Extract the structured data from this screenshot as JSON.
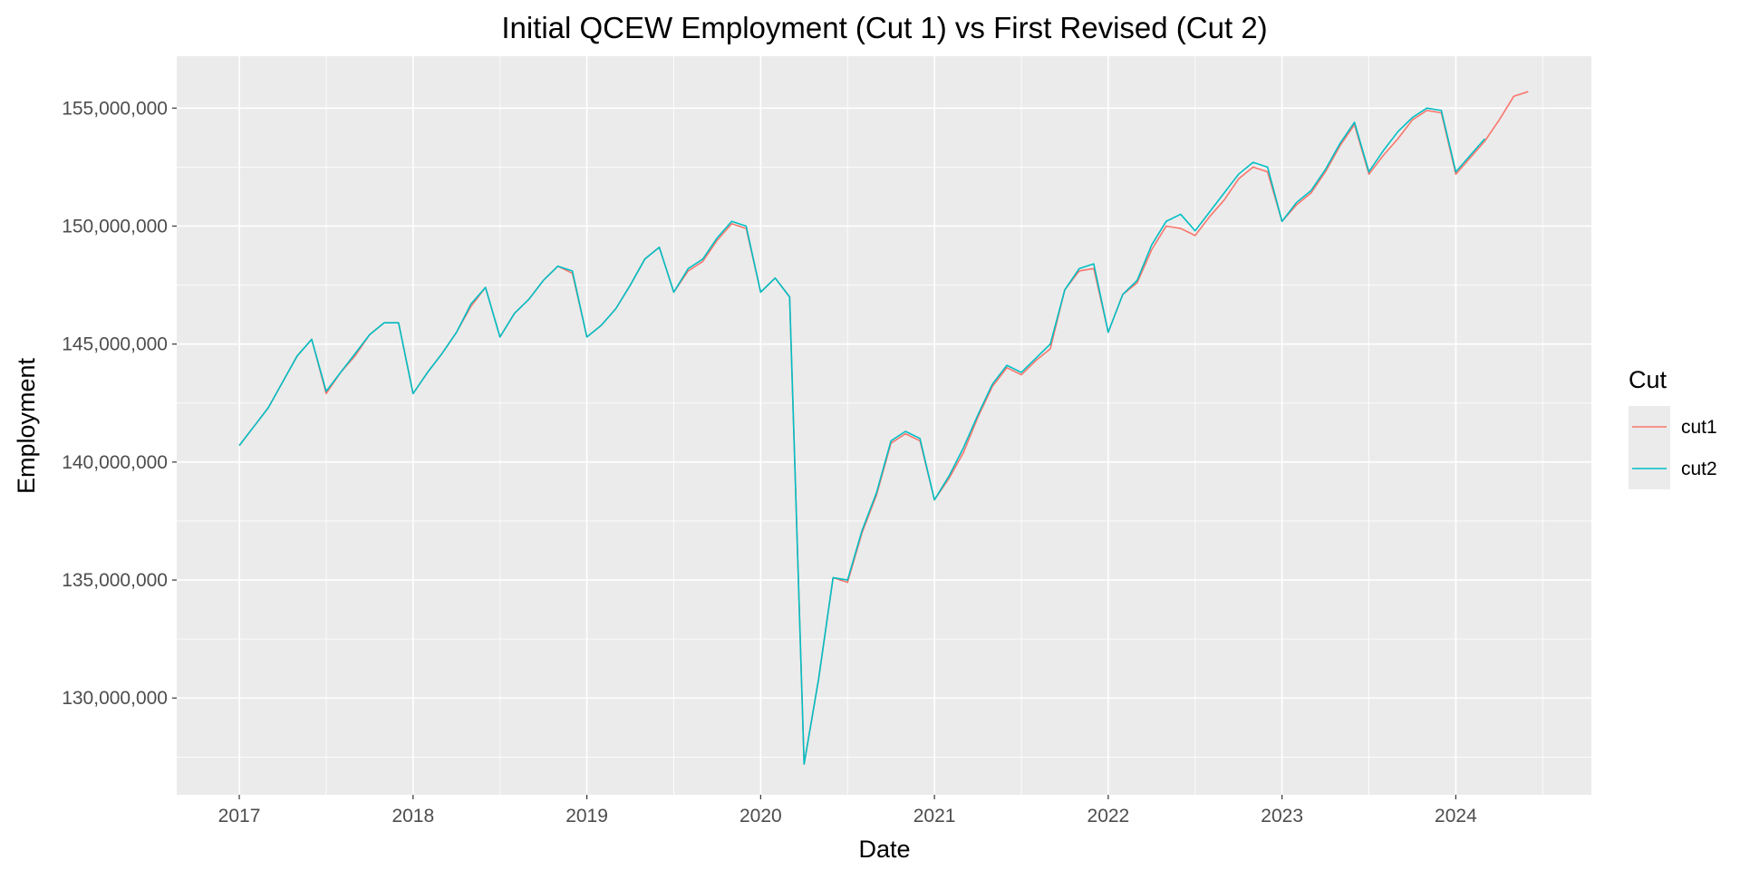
{
  "chart_data": {
    "type": "line",
    "title": "Initial QCEW Employment (Cut 1) vs First Revised (Cut 2)",
    "xlabel": "Date",
    "ylabel": "Employment",
    "x_ticks": [
      "2017",
      "2018",
      "2019",
      "2020",
      "2021",
      "2022",
      "2023",
      "2024"
    ],
    "y_ticks": [
      "130,000,000",
      "135,000,000",
      "140,000,000",
      "145,000,000",
      "150,000,000",
      "155,000,000"
    ],
    "y_tick_values": [
      130000000,
      135000000,
      140000000,
      145000000,
      150000000,
      155000000
    ],
    "ylim": [
      125900000,
      157200000
    ],
    "xlim": [
      2016.64,
      2024.78
    ],
    "legend": {
      "title": "Cut",
      "position": "right"
    },
    "colors": {
      "cut1": "#F8766D",
      "cut2": "#00BFC4",
      "panel": "#EBEBEB",
      "grid": "#FFFFFF"
    },
    "series": [
      {
        "name": "cut1",
        "color": "#F8766D",
        "points": [
          [
            "2017-01",
            140700000
          ],
          [
            "2017-02",
            141500000
          ],
          [
            "2017-03",
            142300000
          ],
          [
            "2017-04",
            143400000
          ],
          [
            "2017-05",
            144500000
          ],
          [
            "2017-06",
            145200000
          ],
          [
            "2017-07",
            142900000
          ],
          [
            "2017-08",
            143800000
          ],
          [
            "2017-09",
            144500000
          ],
          [
            "2017-10",
            145400000
          ],
          [
            "2017-11",
            145900000
          ],
          [
            "2017-12",
            145900000
          ],
          [
            "2018-01",
            142900000
          ],
          [
            "2018-02",
            143800000
          ],
          [
            "2018-03",
            144600000
          ],
          [
            "2018-04",
            145500000
          ],
          [
            "2018-05",
            146600000
          ],
          [
            "2018-06",
            147400000
          ],
          [
            "2018-07",
            145300000
          ],
          [
            "2018-08",
            146300000
          ],
          [
            "2018-09",
            146900000
          ],
          [
            "2018-10",
            147700000
          ],
          [
            "2018-11",
            148300000
          ],
          [
            "2018-12",
            148000000
          ],
          [
            "2019-01",
            145300000
          ],
          [
            "2019-02",
            145800000
          ],
          [
            "2019-03",
            146500000
          ],
          [
            "2019-04",
            147500000
          ],
          [
            "2019-05",
            148600000
          ],
          [
            "2019-06",
            149100000
          ],
          [
            "2019-07",
            147200000
          ],
          [
            "2019-08",
            148100000
          ],
          [
            "2019-09",
            148500000
          ],
          [
            "2019-10",
            149400000
          ],
          [
            "2019-11",
            150100000
          ],
          [
            "2019-12",
            149900000
          ],
          [
            "2020-01",
            147200000
          ],
          [
            "2020-02",
            147800000
          ],
          [
            "2020-03",
            147000000
          ],
          [
            "2020-04",
            127200000
          ],
          [
            "2020-05",
            130800000
          ],
          [
            "2020-06",
            135100000
          ],
          [
            "2020-07",
            134900000
          ],
          [
            "2020-08",
            137000000
          ],
          [
            "2020-09",
            138600000
          ],
          [
            "2020-10",
            140800000
          ],
          [
            "2020-11",
            141200000
          ],
          [
            "2020-12",
            140900000
          ],
          [
            "2021-01",
            138400000
          ],
          [
            "2021-02",
            139300000
          ],
          [
            "2021-03",
            140400000
          ],
          [
            "2021-04",
            141900000
          ],
          [
            "2021-05",
            143200000
          ],
          [
            "2021-06",
            144000000
          ],
          [
            "2021-07",
            143700000
          ],
          [
            "2021-08",
            144300000
          ],
          [
            "2021-09",
            144800000
          ],
          [
            "2021-10",
            147300000
          ],
          [
            "2021-11",
            148100000
          ],
          [
            "2021-12",
            148200000
          ],
          [
            "2022-01",
            145500000
          ],
          [
            "2022-02",
            147100000
          ],
          [
            "2022-03",
            147600000
          ],
          [
            "2022-04",
            149000000
          ],
          [
            "2022-05",
            150000000
          ],
          [
            "2022-06",
            149900000
          ],
          [
            "2022-07",
            149600000
          ],
          [
            "2022-08",
            150400000
          ],
          [
            "2022-09",
            151100000
          ],
          [
            "2022-10",
            152000000
          ],
          [
            "2022-11",
            152500000
          ],
          [
            "2022-12",
            152300000
          ],
          [
            "2023-01",
            150200000
          ],
          [
            "2023-02",
            150900000
          ],
          [
            "2023-03",
            151400000
          ],
          [
            "2023-04",
            152300000
          ],
          [
            "2023-05",
            153400000
          ],
          [
            "2023-06",
            154300000
          ],
          [
            "2023-07",
            152200000
          ],
          [
            "2023-08",
            153000000
          ],
          [
            "2023-09",
            153700000
          ],
          [
            "2023-10",
            154500000
          ],
          [
            "2023-11",
            154900000
          ],
          [
            "2023-12",
            154800000
          ],
          [
            "2024-01",
            152200000
          ],
          [
            "2024-02",
            152900000
          ],
          [
            "2024-03",
            153600000
          ],
          [
            "2024-04",
            154500000
          ],
          [
            "2024-05",
            155500000
          ],
          [
            "2024-06",
            155700000
          ]
        ]
      },
      {
        "name": "cut2",
        "color": "#00BFC4",
        "points": [
          [
            "2017-01",
            140700000
          ],
          [
            "2017-02",
            141500000
          ],
          [
            "2017-03",
            142300000
          ],
          [
            "2017-04",
            143400000
          ],
          [
            "2017-05",
            144500000
          ],
          [
            "2017-06",
            145200000
          ],
          [
            "2017-07",
            143000000
          ],
          [
            "2017-08",
            143800000
          ],
          [
            "2017-09",
            144600000
          ],
          [
            "2017-10",
            145400000
          ],
          [
            "2017-11",
            145900000
          ],
          [
            "2017-12",
            145900000
          ],
          [
            "2018-01",
            142900000
          ],
          [
            "2018-02",
            143800000
          ],
          [
            "2018-03",
            144600000
          ],
          [
            "2018-04",
            145500000
          ],
          [
            "2018-05",
            146700000
          ],
          [
            "2018-06",
            147400000
          ],
          [
            "2018-07",
            145300000
          ],
          [
            "2018-08",
            146300000
          ],
          [
            "2018-09",
            146900000
          ],
          [
            "2018-10",
            147700000
          ],
          [
            "2018-11",
            148300000
          ],
          [
            "2018-12",
            148100000
          ],
          [
            "2019-01",
            145300000
          ],
          [
            "2019-02",
            145800000
          ],
          [
            "2019-03",
            146500000
          ],
          [
            "2019-04",
            147500000
          ],
          [
            "2019-05",
            148600000
          ],
          [
            "2019-06",
            149100000
          ],
          [
            "2019-07",
            147200000
          ],
          [
            "2019-08",
            148200000
          ],
          [
            "2019-09",
            148600000
          ],
          [
            "2019-10",
            149500000
          ],
          [
            "2019-11",
            150200000
          ],
          [
            "2019-12",
            150000000
          ],
          [
            "2020-01",
            147200000
          ],
          [
            "2020-02",
            147800000
          ],
          [
            "2020-03",
            147000000
          ],
          [
            "2020-04",
            127200000
          ],
          [
            "2020-05",
            130800000
          ],
          [
            "2020-06",
            135100000
          ],
          [
            "2020-07",
            135000000
          ],
          [
            "2020-08",
            137100000
          ],
          [
            "2020-09",
            138700000
          ],
          [
            "2020-10",
            140900000
          ],
          [
            "2020-11",
            141300000
          ],
          [
            "2020-12",
            141000000
          ],
          [
            "2021-01",
            138400000
          ],
          [
            "2021-02",
            139400000
          ],
          [
            "2021-03",
            140600000
          ],
          [
            "2021-04",
            142000000
          ],
          [
            "2021-05",
            143300000
          ],
          [
            "2021-06",
            144100000
          ],
          [
            "2021-07",
            143800000
          ],
          [
            "2021-08",
            144400000
          ],
          [
            "2021-09",
            145000000
          ],
          [
            "2021-10",
            147300000
          ],
          [
            "2021-11",
            148200000
          ],
          [
            "2021-12",
            148400000
          ],
          [
            "2022-01",
            145500000
          ],
          [
            "2022-02",
            147100000
          ],
          [
            "2022-03",
            147700000
          ],
          [
            "2022-04",
            149200000
          ],
          [
            "2022-05",
            150200000
          ],
          [
            "2022-06",
            150500000
          ],
          [
            "2022-07",
            149800000
          ],
          [
            "2022-08",
            150600000
          ],
          [
            "2022-09",
            151400000
          ],
          [
            "2022-10",
            152200000
          ],
          [
            "2022-11",
            152700000
          ],
          [
            "2022-12",
            152500000
          ],
          [
            "2023-01",
            150200000
          ],
          [
            "2023-02",
            151000000
          ],
          [
            "2023-03",
            151500000
          ],
          [
            "2023-04",
            152400000
          ],
          [
            "2023-05",
            153500000
          ],
          [
            "2023-06",
            154400000
          ],
          [
            "2023-07",
            152300000
          ],
          [
            "2023-08",
            153200000
          ],
          [
            "2023-09",
            154000000
          ],
          [
            "2023-10",
            154600000
          ],
          [
            "2023-11",
            155000000
          ],
          [
            "2023-12",
            154900000
          ],
          [
            "2024-01",
            152300000
          ],
          [
            "2024-02",
            153000000
          ],
          [
            "2024-03",
            153700000
          ]
        ]
      }
    ]
  }
}
